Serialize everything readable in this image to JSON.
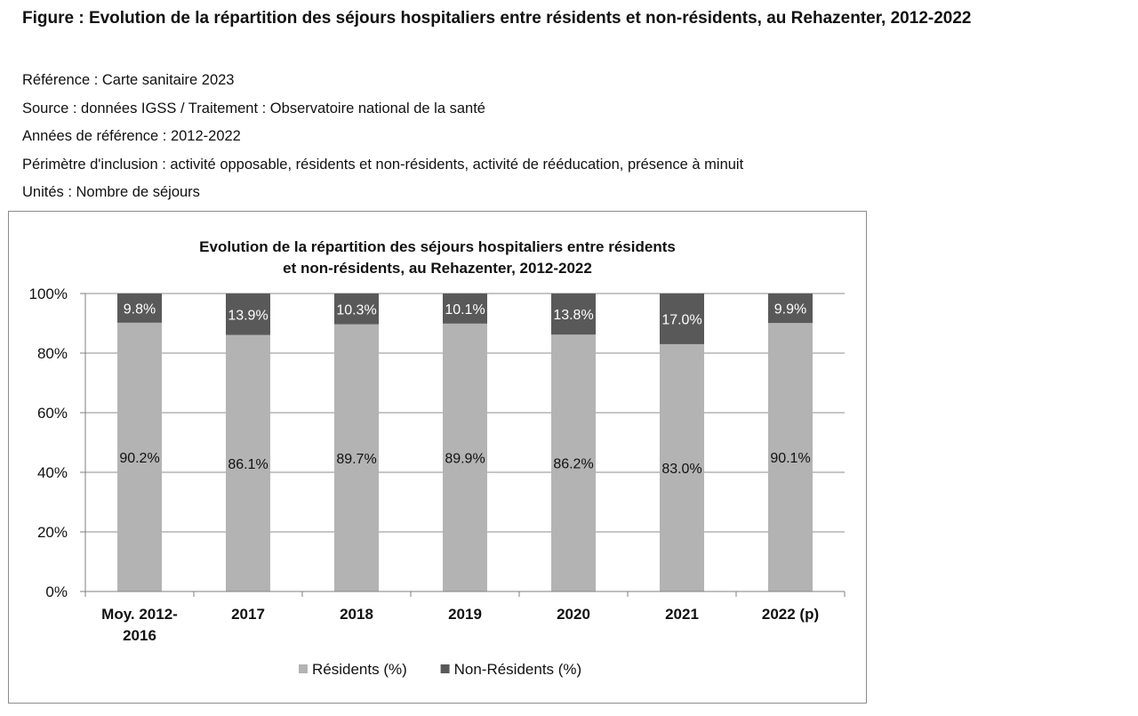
{
  "figure": {
    "title": "Figure : Evolution de la répartition des séjours hospitaliers entre résidents et non-résidents, au Rehazenter, 2012-2022",
    "meta": [
      "Référence : Carte sanitaire 2023",
      "Source : données IGSS / Traitement : Observatoire national de la santé",
      "Années de référence : 2012-2022",
      "Périmètre d'inclusion : activité opposable, résidents et non-résidents, activité de rééducation, présence à minuit",
      "Unités : Nombre de séjours"
    ]
  },
  "chart_data": {
    "type": "bar",
    "stacked": true,
    "title_lines": [
      "Evolution de la répartition des séjours hospitaliers entre résidents",
      "et non-résidents, au Rehazenter, 2012-2022"
    ],
    "categories": [
      [
        "Moy. 2012-",
        "2016"
      ],
      [
        "2017"
      ],
      [
        "2018"
      ],
      [
        "2019"
      ],
      [
        "2020"
      ],
      [
        "2021"
      ],
      [
        "2022 (p)"
      ]
    ],
    "series": [
      {
        "name": "Résidents (%)",
        "color": "#b3b3b3",
        "values": [
          90.2,
          86.1,
          89.7,
          89.9,
          86.2,
          83.0,
          90.1
        ],
        "labels": [
          "90.2%",
          "86.1%",
          "89.7%",
          "89.9%",
          "86.2%",
          "83.0%",
          "90.1%"
        ],
        "label_color": "#111111"
      },
      {
        "name": "Non-Résidents (%)",
        "color": "#595959",
        "values": [
          9.8,
          13.9,
          10.3,
          10.1,
          13.8,
          17.0,
          9.9
        ],
        "labels": [
          "9.8%",
          "13.9%",
          "10.3%",
          "10.1%",
          "13.8%",
          "17.0%",
          "9.9%"
        ],
        "label_color": "#ffffff"
      }
    ],
    "yticks": [
      "0%",
      "20%",
      "40%",
      "60%",
      "80%",
      "100%"
    ],
    "ylim": [
      0,
      100
    ],
    "grid": true,
    "legend_position": "bottom"
  }
}
